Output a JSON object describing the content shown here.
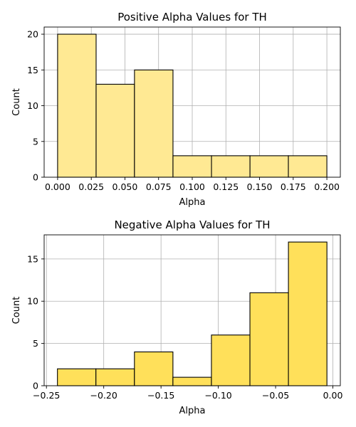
{
  "chart_data": [
    {
      "type": "bar",
      "title": "Positive Alpha Values for TH",
      "xlabel": "Alpha",
      "ylabel": "Count",
      "bar_color": "#ffe993",
      "edge_color": "#000000",
      "bins": [
        {
          "start": 0.0,
          "end": 0.0286,
          "count": 20
        },
        {
          "start": 0.0286,
          "end": 0.0571,
          "count": 13
        },
        {
          "start": 0.0571,
          "end": 0.0857,
          "count": 15
        },
        {
          "start": 0.0857,
          "end": 0.1143,
          "count": 3
        },
        {
          "start": 0.1143,
          "end": 0.1429,
          "count": 3
        },
        {
          "start": 0.1429,
          "end": 0.1714,
          "count": 3
        },
        {
          "start": 0.1714,
          "end": 0.2,
          "count": 3
        }
      ],
      "xlim": [
        -0.01,
        0.21
      ],
      "ylim": [
        0,
        21
      ],
      "xticks": [
        0.0,
        0.025,
        0.05,
        0.075,
        0.1,
        0.125,
        0.15,
        0.175,
        0.2
      ],
      "xtick_labels": [
        "0.000",
        "0.025",
        "0.050",
        "0.075",
        "0.100",
        "0.125",
        "0.150",
        "0.175",
        "0.200"
      ],
      "yticks": [
        0,
        5,
        10,
        15,
        20
      ],
      "ytick_labels": [
        "0",
        "5",
        "10",
        "15",
        "20"
      ],
      "grid": true
    },
    {
      "type": "bar",
      "title": "Negative Alpha Values for TH",
      "xlabel": "Alpha",
      "ylabel": "Count",
      "bar_color": "#ffe05a",
      "edge_color": "#000000",
      "bins": [
        {
          "start": -0.2404,
          "end": -0.2068,
          "count": 2
        },
        {
          "start": -0.2068,
          "end": -0.1732,
          "count": 2
        },
        {
          "start": -0.1732,
          "end": -0.1396,
          "count": 4
        },
        {
          "start": -0.1396,
          "end": -0.106,
          "count": 1
        },
        {
          "start": -0.106,
          "end": -0.0724,
          "count": 6
        },
        {
          "start": -0.0724,
          "end": -0.0388,
          "count": 11
        },
        {
          "start": -0.0388,
          "end": -0.0052,
          "count": 17
        }
      ],
      "xlim": [
        -0.252,
        0.0065
      ],
      "ylim": [
        0,
        17.85
      ],
      "xticks": [
        -0.25,
        -0.2,
        -0.15,
        -0.1,
        -0.05,
        0.0
      ],
      "xtick_labels": [
        "−0.25",
        "−0.20",
        "−0.15",
        "−0.10",
        "−0.05",
        "0.00"
      ],
      "yticks": [
        0,
        5,
        10,
        15
      ],
      "ytick_labels": [
        "0",
        "5",
        "10",
        "15"
      ],
      "grid": true
    }
  ]
}
